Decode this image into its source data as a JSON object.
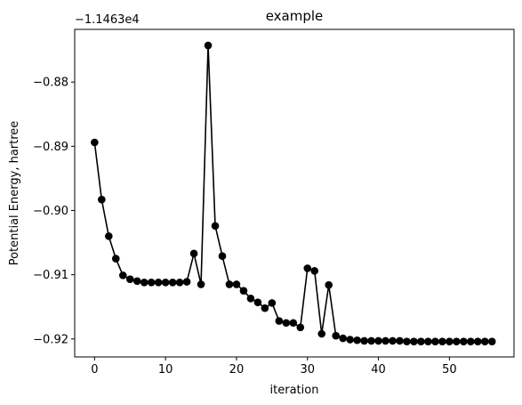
{
  "chart_data": {
    "type": "line",
    "title": "example",
    "xlabel": "iteration",
    "ylabel": "Potential Energy, hartree",
    "y_offset_text": "−1.1463e4",
    "xlim": [
      -2.8,
      59.1
    ],
    "ylim": [
      -0.9228,
      -0.8718
    ],
    "x_ticks": [
      0,
      10,
      20,
      30,
      40,
      50
    ],
    "y_ticks": [
      -0.92,
      -0.91,
      -0.9,
      -0.89,
      -0.88
    ],
    "y_tick_labels": [
      "−0.92",
      "−0.91",
      "−0.90",
      "−0.89",
      "−0.88"
    ],
    "grid": false,
    "series": [
      {
        "color": "#000000",
        "marker": "circle",
        "x": [
          0,
          1,
          2,
          3,
          4,
          5,
          6,
          7,
          8,
          9,
          10,
          11,
          12,
          13,
          14,
          15,
          16,
          17,
          18,
          19,
          20,
          21,
          22,
          23,
          24,
          25,
          26,
          27,
          28,
          29,
          30,
          31,
          32,
          33,
          34,
          35,
          36,
          37,
          38,
          39,
          40,
          41,
          42,
          43,
          44,
          45,
          46,
          47,
          48,
          49,
          50,
          51,
          52,
          53,
          54,
          55,
          56
        ],
        "y": [
          -0.8894,
          -0.8983,
          -0.904,
          -0.9075,
          -0.9101,
          -0.9107,
          -0.911,
          -0.9112,
          -0.9112,
          -0.9112,
          -0.9112,
          -0.9112,
          -0.9112,
          -0.9111,
          -0.9067,
          -0.9115,
          -0.8743,
          -0.9024,
          -0.9071,
          -0.9115,
          -0.9115,
          -0.9125,
          -0.9137,
          -0.9143,
          -0.9152,
          -0.9144,
          -0.9172,
          -0.9175,
          -0.9175,
          -0.9182,
          -0.909,
          -0.9094,
          -0.9192,
          -0.9116,
          -0.9195,
          -0.9199,
          -0.9201,
          -0.9202,
          -0.9203,
          -0.9203,
          -0.9203,
          -0.9203,
          -0.9203,
          -0.9203,
          -0.9204,
          -0.9204,
          -0.9204,
          -0.9204,
          -0.9204,
          -0.9204,
          -0.9204,
          -0.9204,
          -0.9204,
          -0.9204,
          -0.9204,
          -0.9204,
          -0.9204
        ]
      }
    ]
  }
}
